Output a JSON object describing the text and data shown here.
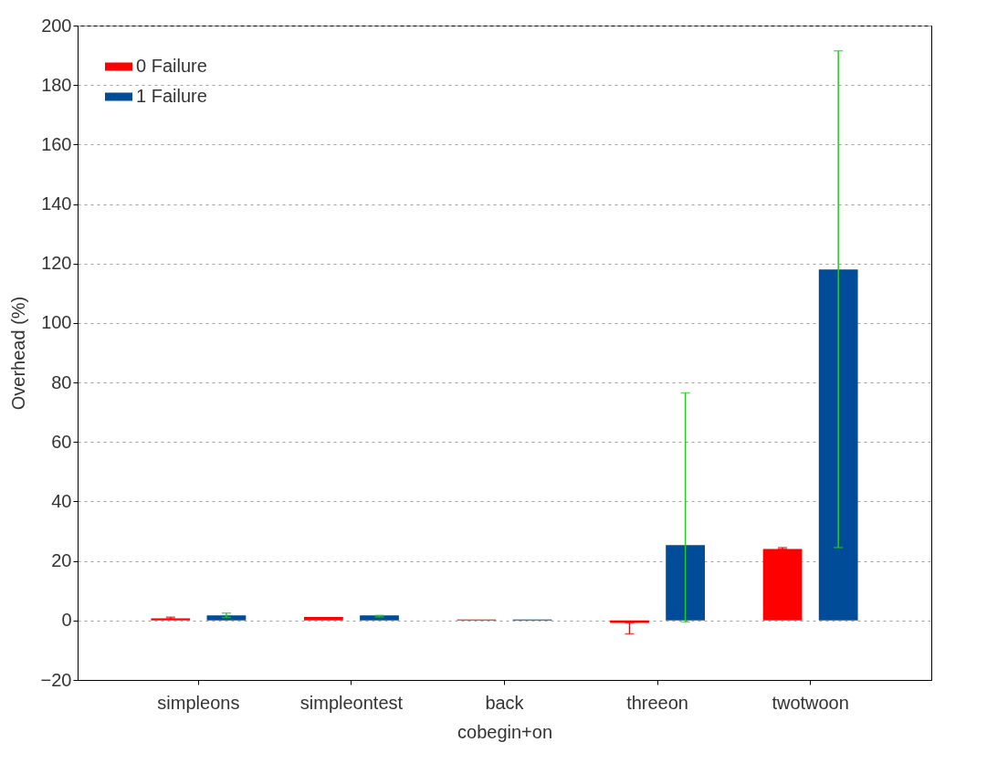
{
  "chart_data": {
    "type": "bar",
    "xlabel": "cobegin+on",
    "ylabel": "Overhead (%)",
    "categories": [
      "simpleons",
      "simpleontest",
      "back",
      "threeon",
      "twotwoon"
    ],
    "series": [
      {
        "name": "0 Failure",
        "color": "#ff0000",
        "values": [
          0.7,
          1.2,
          0.3,
          -0.8,
          24
        ],
        "errors": [
          [
            0.5,
            1.1
          ],
          null,
          null,
          [
            -4.5,
            -0.8
          ],
          [
            24,
            24.5
          ]
        ]
      },
      {
        "name": "1 Failure",
        "color": "#004c99",
        "values": [
          1.7,
          1.7,
          0.3,
          25.3,
          118
        ],
        "errors": [
          [
            1,
            2.5
          ],
          [
            1.2,
            1.7
          ],
          null,
          [
            -0.5,
            76.5
          ],
          [
            24.5,
            191.5
          ]
        ]
      }
    ],
    "ylim": [
      -20,
      200
    ],
    "yticks": [
      -20,
      0,
      20,
      40,
      60,
      80,
      100,
      120,
      140,
      160,
      180,
      200
    ],
    "grid": "y",
    "legend": "top left"
  }
}
